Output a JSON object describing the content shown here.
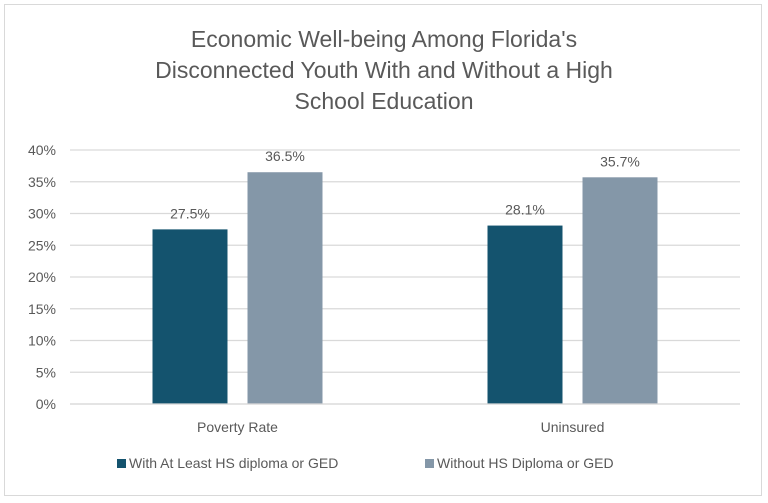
{
  "chart_data": {
    "type": "bar",
    "title": "Economic Well-being Among Florida's Disconnected Youth With and Without a High School Education",
    "title_lines": [
      "Economic Well-being Among Florida's",
      "Disconnected Youth With and Without a High",
      "School Education"
    ],
    "categories": [
      "Poverty Rate",
      "Uninsured"
    ],
    "series": [
      {
        "name": "With At Least HS diploma or GED",
        "values": [
          27.5,
          28.1
        ],
        "labels": [
          "27.5%",
          "28.1%"
        ],
        "color": "#14536e"
      },
      {
        "name": "Without HS Diploma or GED",
        "values": [
          36.5,
          35.7
        ],
        "labels": [
          "36.5%",
          "35.7%"
        ],
        "color": "#8497a8"
      }
    ],
    "ylim": [
      0,
      40
    ],
    "yticks": [
      "0%",
      "5%",
      "10%",
      "15%",
      "20%",
      "25%",
      "30%",
      "35%",
      "40%"
    ],
    "grid": true,
    "legend": "bottom",
    "xlabel": "",
    "ylabel": ""
  }
}
